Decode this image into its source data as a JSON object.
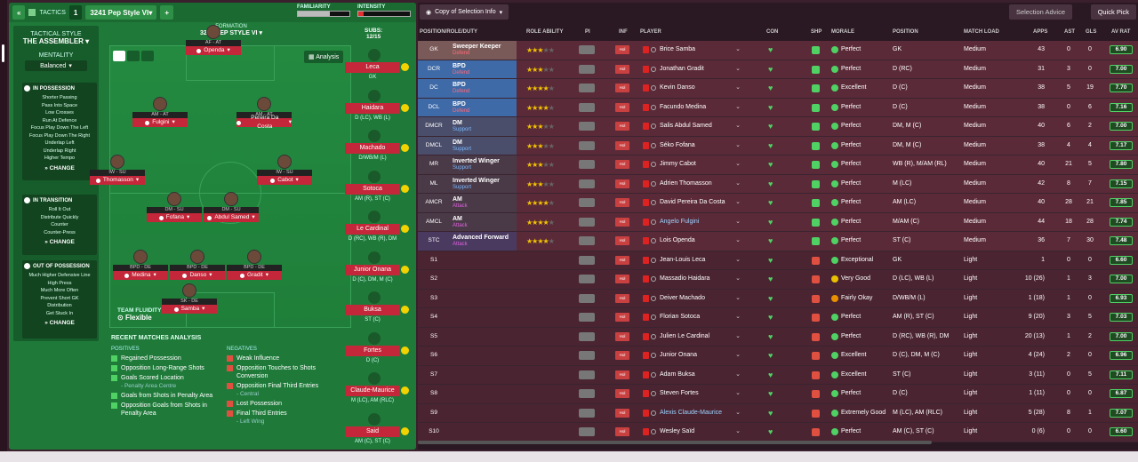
{
  "topbar": {
    "back_icon": "double-chevron-left-icon",
    "tactics_label": "TACTICS",
    "tactic_number": "1",
    "tactic_name": "3241 Pep Style VI",
    "add_label": "+",
    "familiarity_label": "FAMILIARITY",
    "intensity_label": "INTENSITY",
    "familiarity_level": 0.62,
    "intensity_level": 0.1
  },
  "tactical_style": {
    "heading": "TACTICAL STYLE",
    "value": "THE ASSEMBLER",
    "mentality_heading": "MENTALITY",
    "mentality_value": "Balanced",
    "in_possession": {
      "title": "IN POSSESSION",
      "items": [
        "Shorter Passing",
        "Pass Into Space",
        "Low Crosses",
        "Run At Defence",
        "Focus Play Down The Left",
        "Focus Play Down The Right",
        "Underlap Left",
        "Underlap Right",
        "Higher Tempo"
      ],
      "change": "CHANGE"
    },
    "in_transition": {
      "title": "IN TRANSITION",
      "items": [
        "Roll It Out",
        "Distribute Quickly",
        "Counter",
        "Counter-Press"
      ],
      "change": "CHANGE"
    },
    "out_of_possession": {
      "title": "OUT OF POSSESSION",
      "items": [
        "Much Higher Defensive Line",
        "High Press",
        "Much More Often",
        "Prevent Short GK",
        "Distribution",
        "Get Stuck In"
      ],
      "change": "CHANGE"
    }
  },
  "formation": {
    "heading": "FORMATION",
    "name": "3241 PEP STYLE VI",
    "subs_label": "SUBS:",
    "subs_count": "12/15",
    "analysis_label": "Analysis",
    "fluidity_label": "TEAM FLUIDITY",
    "fluidity_value": "Flexible"
  },
  "pitch_players": [
    {
      "role": "AF - AT",
      "name": "Openda"
    },
    {
      "role": "AM - AT",
      "name": "Fulgini"
    },
    {
      "role": "AM - AT",
      "name": "Pereira Da Costa"
    },
    {
      "role": "IW - SU",
      "name": "Thomasson"
    },
    {
      "role": "IW - SU",
      "name": "Cabot"
    },
    {
      "role": "DM - SU",
      "name": "Fofana"
    },
    {
      "role": "DM - SU",
      "name": "Abdul Samed"
    },
    {
      "role": "BPD - DE",
      "name": "Medina"
    },
    {
      "role": "BPD - DE",
      "name": "Danso"
    },
    {
      "role": "BPD - DE",
      "name": "Gradit"
    },
    {
      "role": "SK - DE",
      "name": "Samba"
    }
  ],
  "subs": [
    {
      "name": "Leca",
      "pos": "GK"
    },
    {
      "name": "Haidara",
      "pos": "D (LC), WB (L)"
    },
    {
      "name": "Machado",
      "pos": "D/WB/M (L)"
    },
    {
      "name": "Sotoca",
      "pos": "AM (R), ST (C)"
    },
    {
      "name": "Le Cardinal",
      "pos": "D (RC), WB (R), DM"
    },
    {
      "name": "Junior Onana",
      "pos": "D (C), DM, M (C)"
    },
    {
      "name": "Buksa",
      "pos": "ST (C)"
    },
    {
      "name": "Fortes",
      "pos": "D (C)"
    },
    {
      "name": "Claude-Maurice",
      "pos": "M (LC), AM (RLC)"
    },
    {
      "name": "Said",
      "pos": "AM (C), ST (C)"
    }
  ],
  "recent_matches": {
    "title": "RECENT MATCHES ANALYSIS",
    "positives_heading": "POSITIVES",
    "negatives_heading": "NEGATIVES",
    "positives": [
      {
        "text": "Regained Possession",
        "sub": ""
      },
      {
        "text": "Opposition Long-Range Shots",
        "sub": ""
      },
      {
        "text": "Goals Scored Location",
        "sub": "- Penalty Area Centre"
      },
      {
        "text": "Goals from Shots in Penalty Area",
        "sub": ""
      },
      {
        "text": "Opposition Goals from Shots in Penalty Area",
        "sub": ""
      }
    ],
    "negatives": [
      {
        "text": "Weak Influence",
        "sub": ""
      },
      {
        "text": "Opposition Touches to Shots Conversion",
        "sub": ""
      },
      {
        "text": "Opposition Final Third Entries",
        "sub": "- Central"
      },
      {
        "text": "Lost Possession",
        "sub": ""
      },
      {
        "text": "Final Third Entries",
        "sub": "- Left Wing"
      }
    ]
  },
  "right_toolbar": {
    "copy_label": "Copy of Selection Info",
    "advice_label": "Selection Advice",
    "quick_pick_label": "Quick Pick"
  },
  "columns": {
    "position": "POSITION/ROLE/DUTY",
    "ability": "ROLE ABILITY",
    "pi": "PI",
    "inf": "INF",
    "player": "PLAYER",
    "con": "CON",
    "shp": "SHP",
    "morale": "MORALE",
    "pos": "POSITION",
    "load": "MATCH LOAD",
    "apps": "APPS",
    "ast": "AST",
    "gls": "GLS",
    "avr": "AV RAT"
  },
  "rows": [
    {
      "slot": "GK",
      "role": "Sweeper Keeper",
      "duty": "Defend",
      "stars": 2.5,
      "player": "Brice Samba",
      "morale": "Perfect",
      "position": "GK",
      "load": "Medium",
      "apps": "43",
      "ast": "0",
      "gls": "0",
      "rating": "6.90",
      "slot_color": "#7a5a58"
    },
    {
      "slot": "DCR",
      "role": "BPD",
      "duty": "Defend",
      "stars": 2.5,
      "player": "Jonathan Gradit",
      "morale": "Perfect",
      "position": "D (RC)",
      "load": "Medium",
      "apps": "31",
      "ast": "3",
      "gls": "0",
      "rating": "7.00",
      "slot_color": "#3e6aa8"
    },
    {
      "slot": "DC",
      "role": "BPD",
      "duty": "Defend",
      "stars": 4,
      "player": "Kevin Danso",
      "morale": "Excellent",
      "position": "D (C)",
      "load": "Medium",
      "apps": "38",
      "ast": "5",
      "gls": "19",
      "rating": "7.70",
      "slot_color": "#3e6aa8"
    },
    {
      "slot": "DCL",
      "role": "BPD",
      "duty": "Defend",
      "stars": 3.5,
      "player": "Facundo Medina",
      "morale": "Perfect",
      "position": "D (C)",
      "load": "Medium",
      "apps": "38",
      "ast": "0",
      "gls": "6",
      "rating": "7.16",
      "slot_color": "#3e6aa8"
    },
    {
      "slot": "DMCR",
      "role": "DM",
      "duty": "Support",
      "stars": 3,
      "player": "Salis Abdul Samed",
      "morale": "Perfect",
      "position": "DM, M (C)",
      "load": "Medium",
      "apps": "40",
      "ast": "6",
      "gls": "2",
      "rating": "7.00",
      "slot_color": "#4a4e6a"
    },
    {
      "slot": "DMCL",
      "role": "DM",
      "duty": "Support",
      "stars": 2.5,
      "player": "Séko Fofana",
      "morale": "Perfect",
      "position": "DM, M (C)",
      "load": "Medium",
      "apps": "38",
      "ast": "4",
      "gls": "4",
      "rating": "7.17",
      "slot_color": "#4a4e6a"
    },
    {
      "slot": "MR",
      "role": "Inverted Winger",
      "duty": "Support",
      "stars": 3,
      "player": "Jimmy Cabot",
      "morale": "Perfect",
      "position": "WB (R), M/AM (RL)",
      "load": "Medium",
      "apps": "40",
      "ast": "21",
      "gls": "5",
      "rating": "7.80",
      "slot_color": "#4a3a48"
    },
    {
      "slot": "ML",
      "role": "Inverted Winger",
      "duty": "Support",
      "stars": 3,
      "player": "Adrien Thomasson",
      "morale": "Perfect",
      "position": "M (LC)",
      "load": "Medium",
      "apps": "42",
      "ast": "8",
      "gls": "7",
      "rating": "7.15",
      "slot_color": "#4a3a48"
    },
    {
      "slot": "AMCR",
      "role": "AM",
      "duty": "Attack",
      "stars": 3.5,
      "player": "David Pereira Da Costa",
      "morale": "Perfect",
      "position": "AM (LC)",
      "load": "Medium",
      "apps": "40",
      "ast": "28",
      "gls": "21",
      "rating": "7.85",
      "slot_color": "#4a3a48"
    },
    {
      "slot": "AMCL",
      "role": "AM",
      "duty": "Attack",
      "stars": 4,
      "player": "Angelo Fulgini",
      "morale": "Perfect",
      "position": "M/AM (C)",
      "load": "Medium",
      "apps": "44",
      "ast": "18",
      "gls": "28",
      "rating": "7.74",
      "slot_color": "#4a3a48",
      "link": true
    },
    {
      "slot": "STC",
      "role": "Advanced Forward",
      "duty": "Attack",
      "stars": 3.5,
      "player": "Lois Openda",
      "morale": "Perfect",
      "position": "ST (C)",
      "load": "Medium",
      "apps": "36",
      "ast": "7",
      "gls": "30",
      "rating": "7.48",
      "slot_color": "#4a3a60"
    },
    {
      "slot": "S1",
      "role": "",
      "duty": "",
      "stars": 0,
      "player": "Jean-Louis Leca",
      "morale": "Exceptional",
      "position": "GK",
      "load": "Light",
      "apps": "1",
      "ast": "0",
      "gls": "0",
      "rating": "6.60",
      "sub": true
    },
    {
      "slot": "S2",
      "role": "",
      "duty": "",
      "stars": 0,
      "player": "Massadio Haidara",
      "morale": "Very Good",
      "position": "D (LC), WB (L)",
      "load": "Light",
      "apps": "10 (26)",
      "ast": "1",
      "gls": "3",
      "rating": "7.00",
      "sub": true
    },
    {
      "slot": "S3",
      "role": "",
      "duty": "",
      "stars": 0,
      "player": "Deiver Machado",
      "morale": "Fairly Okay",
      "position": "D/WB/M (L)",
      "load": "Light",
      "apps": "1 (18)",
      "ast": "1",
      "gls": "0",
      "rating": "6.93",
      "sub": true
    },
    {
      "slot": "S4",
      "role": "",
      "duty": "",
      "stars": 0,
      "player": "Florian Sotoca",
      "morale": "Perfect",
      "position": "AM (R), ST (C)",
      "load": "Light",
      "apps": "9 (20)",
      "ast": "3",
      "gls": "5",
      "rating": "7.03",
      "sub": true
    },
    {
      "slot": "S5",
      "role": "",
      "duty": "",
      "stars": 0,
      "player": "Julien Le Cardinal",
      "morale": "Perfect",
      "position": "D (RC), WB (R), DM",
      "load": "Light",
      "apps": "20 (13)",
      "ast": "1",
      "gls": "2",
      "rating": "7.00",
      "sub": true
    },
    {
      "slot": "S6",
      "role": "",
      "duty": "",
      "stars": 0,
      "player": "Junior Onana",
      "morale": "Excellent",
      "position": "D (C), DM, M (C)",
      "load": "Light",
      "apps": "4 (24)",
      "ast": "2",
      "gls": "0",
      "rating": "6.96",
      "sub": true
    },
    {
      "slot": "S7",
      "role": "",
      "duty": "",
      "stars": 0,
      "player": "Adam Buksa",
      "morale": "Excellent",
      "position": "ST (C)",
      "load": "Light",
      "apps": "3 (11)",
      "ast": "0",
      "gls": "5",
      "rating": "7.11",
      "sub": true
    },
    {
      "slot": "S8",
      "role": "",
      "duty": "",
      "stars": 0,
      "player": "Steven Fortes",
      "morale": "Perfect",
      "position": "D (C)",
      "load": "Light",
      "apps": "1 (11)",
      "ast": "0",
      "gls": "0",
      "rating": "6.87",
      "sub": true
    },
    {
      "slot": "S9",
      "role": "",
      "duty": "",
      "stars": 0,
      "player": "Alexis Claude-Maurice",
      "morale": "Extremely Good",
      "position": "M (LC), AM (RLC)",
      "load": "Light",
      "apps": "5 (28)",
      "ast": "8",
      "gls": "1",
      "rating": "7.07",
      "sub": true,
      "link": true
    },
    {
      "slot": "S10",
      "role": "",
      "duty": "",
      "stars": 0,
      "player": "Wesley Saïd",
      "morale": "Perfect",
      "position": "AM (C), ST (C)",
      "load": "Light",
      "apps": "0 (6)",
      "ast": "0",
      "gls": "0",
      "rating": "6.60",
      "sub": true
    }
  ],
  "inf_label": "Hol",
  "colors": {
    "green": "#1f7a3a",
    "red": "#c4273a",
    "accent": "#4fd164"
  }
}
